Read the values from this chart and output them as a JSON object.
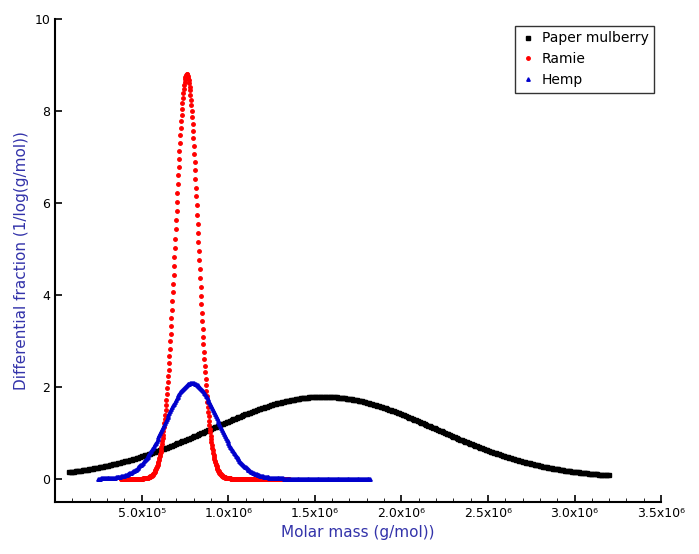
{
  "xlabel": "Molar mass (g/mol))",
  "ylabel": "Differential fraction (1/log(g/mol))",
  "xlim": [
    0,
    3500000.0
  ],
  "ylim": [
    -0.5,
    10
  ],
  "yticks": [
    0,
    2,
    4,
    6,
    8,
    10
  ],
  "xtick_vals": [
    500000,
    1000000,
    1500000,
    2000000,
    2500000,
    3000000,
    3500000
  ],
  "xtick_labels": [
    "5.0x10⁵",
    "1.0x10⁶",
    "1.5x10⁶",
    "2.0x10⁶",
    "2.5x10⁶",
    "3.0x10⁶",
    "3.5x10⁶"
  ],
  "series": [
    {
      "label": "Paper mulberry",
      "color": "#000000",
      "marker": "s",
      "markersize": 2.5
    },
    {
      "label": "Ramie",
      "color": "#ff0000",
      "marker": "o",
      "markersize": 2.5
    },
    {
      "label": "Hemp",
      "color": "#0000cc",
      "marker": "^",
      "markersize": 2.5
    }
  ]
}
